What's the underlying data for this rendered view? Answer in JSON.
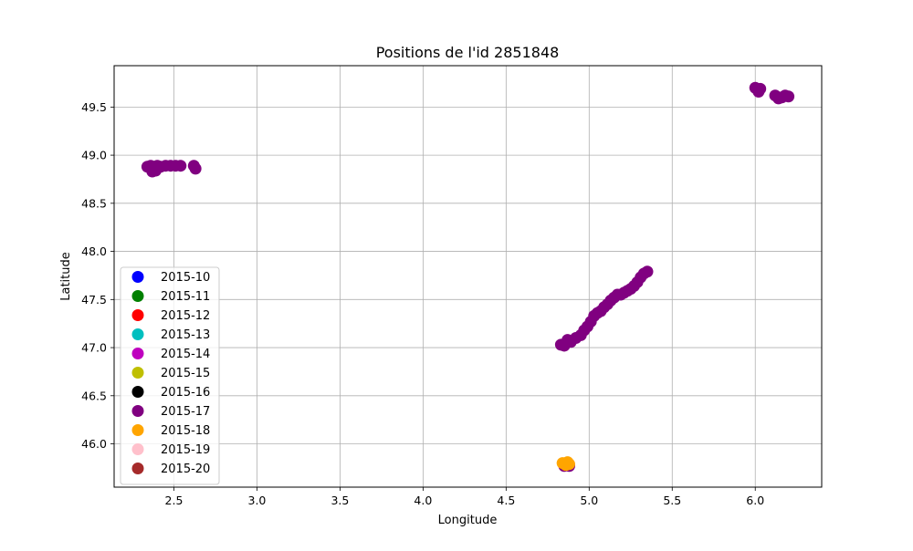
{
  "chart_data": {
    "type": "scatter",
    "title": "Positions de l'id 2851848",
    "xlabel": "Longitude",
    "ylabel": "Latitude",
    "xlim": [
      2.14,
      6.4
    ],
    "ylim": [
      45.55,
      49.93
    ],
    "xticks": [
      2.5,
      3.0,
      3.5,
      4.0,
      4.5,
      5.0,
      5.5,
      6.0
    ],
    "yticks": [
      46.0,
      46.5,
      47.0,
      47.5,
      48.0,
      48.5,
      49.0,
      49.5
    ],
    "xtick_labels": [
      "2.5",
      "3.0",
      "3.5",
      "4.0",
      "4.5",
      "5.0",
      "5.5",
      "6.0"
    ],
    "ytick_labels": [
      "46.0",
      "46.5",
      "47.0",
      "47.5",
      "48.0",
      "48.5",
      "49.0",
      "49.5"
    ],
    "grid": true,
    "legend_position": "lower-left",
    "series": [
      {
        "name": "2015-10",
        "color": "#0000ff",
        "x": [],
        "y": []
      },
      {
        "name": "2015-11",
        "color": "#008000",
        "x": [],
        "y": []
      },
      {
        "name": "2015-12",
        "color": "#ff0000",
        "x": [],
        "y": []
      },
      {
        "name": "2015-13",
        "color": "#00bfbf",
        "x": [],
        "y": []
      },
      {
        "name": "2015-14",
        "color": "#bf00bf",
        "x": [],
        "y": []
      },
      {
        "name": "2015-15",
        "color": "#bfbf00",
        "x": [],
        "y": []
      },
      {
        "name": "2015-16",
        "color": "#000000",
        "x": [],
        "y": []
      },
      {
        "name": "2015-17",
        "color": "#800080",
        "x": [
          2.34,
          2.36,
          2.38,
          2.4,
          2.42,
          2.45,
          2.48,
          2.51,
          2.54,
          2.37,
          2.39,
          2.62,
          2.63,
          4.83,
          4.85,
          4.87,
          4.89,
          4.92,
          4.95,
          4.97,
          4.99,
          5.01,
          5.03,
          5.05,
          5.07,
          5.09,
          5.11,
          5.13,
          5.15,
          5.17,
          5.19,
          5.21,
          5.23,
          5.25,
          5.27,
          5.29,
          5.31,
          5.33,
          5.35,
          6.0,
          6.02,
          6.03,
          6.12,
          6.14,
          6.16,
          6.18,
          6.2,
          4.85,
          4.88
        ],
        "y": [
          48.88,
          48.89,
          48.88,
          48.89,
          48.88,
          48.89,
          48.89,
          48.89,
          48.89,
          48.83,
          48.84,
          48.89,
          48.86,
          47.03,
          47.02,
          47.08,
          47.06,
          47.1,
          47.13,
          47.18,
          47.22,
          47.27,
          47.33,
          47.36,
          47.38,
          47.42,
          47.45,
          47.49,
          47.52,
          47.55,
          47.55,
          47.57,
          47.59,
          47.61,
          47.64,
          47.68,
          47.73,
          47.77,
          47.79,
          49.7,
          49.66,
          49.69,
          49.62,
          49.59,
          49.6,
          49.62,
          49.61,
          45.77,
          45.77
        ]
      },
      {
        "name": "2015-18",
        "color": "#ffa500",
        "x": [
          4.84,
          4.86,
          4.87,
          4.88
        ],
        "y": [
          45.8,
          45.78,
          45.81,
          45.79
        ]
      },
      {
        "name": "2015-19",
        "color": "#ffc0cb",
        "x": [],
        "y": []
      },
      {
        "name": "2015-20",
        "color": "#a52a2a",
        "x": [],
        "y": []
      }
    ]
  }
}
